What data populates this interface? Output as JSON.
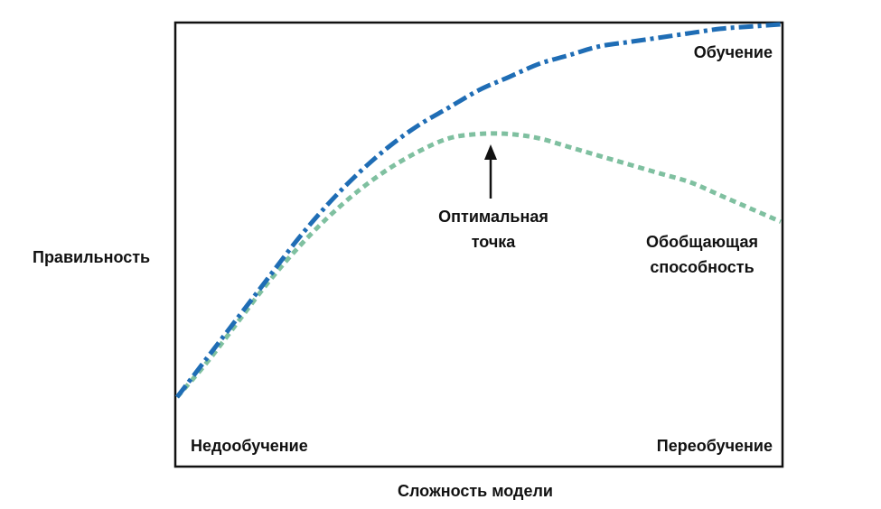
{
  "chart_data": {
    "type": "line",
    "xlabel": "Сложность модели",
    "ylabel": "Правильность",
    "xlim": [
      0,
      1
    ],
    "ylim": [
      0,
      1
    ],
    "grid": false,
    "series": [
      {
        "name": "Обучение",
        "style": "dash-dot",
        "color": "#1f6db5",
        "x": [
          0,
          0.05,
          0.1,
          0.15,
          0.2,
          0.25,
          0.3,
          0.35,
          0.4,
          0.45,
          0.5,
          0.55,
          0.6,
          0.65,
          0.7,
          0.75,
          0.8,
          0.85,
          0.9,
          0.95,
          1.0
        ],
        "y": [
          0.15,
          0.24,
          0.33,
          0.42,
          0.51,
          0.59,
          0.66,
          0.72,
          0.77,
          0.81,
          0.85,
          0.88,
          0.91,
          0.93,
          0.95,
          0.96,
          0.97,
          0.98,
          0.99,
          0.995,
          1.0
        ]
      },
      {
        "name": "Обобщающая способность",
        "style": "dotted",
        "color": "#7fc0a0",
        "x": [
          0,
          0.05,
          0.1,
          0.15,
          0.2,
          0.25,
          0.3,
          0.35,
          0.4,
          0.45,
          0.5,
          0.55,
          0.6,
          0.65,
          0.7,
          0.75,
          0.8,
          0.85,
          0.9,
          0.95,
          1.0
        ],
        "y": [
          0.15,
          0.23,
          0.32,
          0.41,
          0.49,
          0.56,
          0.62,
          0.67,
          0.71,
          0.74,
          0.75,
          0.75,
          0.74,
          0.72,
          0.7,
          0.68,
          0.66,
          0.64,
          0.61,
          0.58,
          0.55
        ]
      }
    ],
    "annotations": {
      "optimum": {
        "text_line1": "Оптимальная",
        "text_line2": "точка",
        "x": 0.52,
        "y": 0.75
      },
      "train_label": "Обучение",
      "generalization_line1": "Обобщающая",
      "generalization_line2": "способность",
      "underfitting": "Недообучение",
      "overfitting": "Переобучение"
    }
  }
}
